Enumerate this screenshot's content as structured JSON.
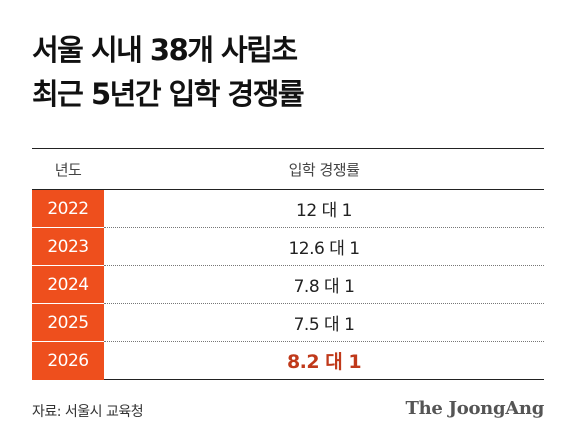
{
  "title": {
    "line1": "서울 시내 38개 사립초",
    "line2": "최근 5년간 입학 경쟁률"
  },
  "table": {
    "headers": {
      "year": "년도",
      "rate": "입학 경쟁률"
    },
    "rows": [
      {
        "year": "2022",
        "rate": "12 대 1"
      },
      {
        "year": "2023",
        "rate": "12.6 대 1"
      },
      {
        "year": "2024",
        "rate": "7.8 대 1"
      },
      {
        "year": "2025",
        "rate": "7.5 대 1"
      },
      {
        "year": "2026",
        "rate": "8.2 대 1"
      }
    ],
    "highlight_color": "#c0391a",
    "year_cell_color": "#ee4f1d"
  },
  "footer": {
    "source": "자료: 서울시 교육청",
    "brand": "The JoongAng"
  }
}
